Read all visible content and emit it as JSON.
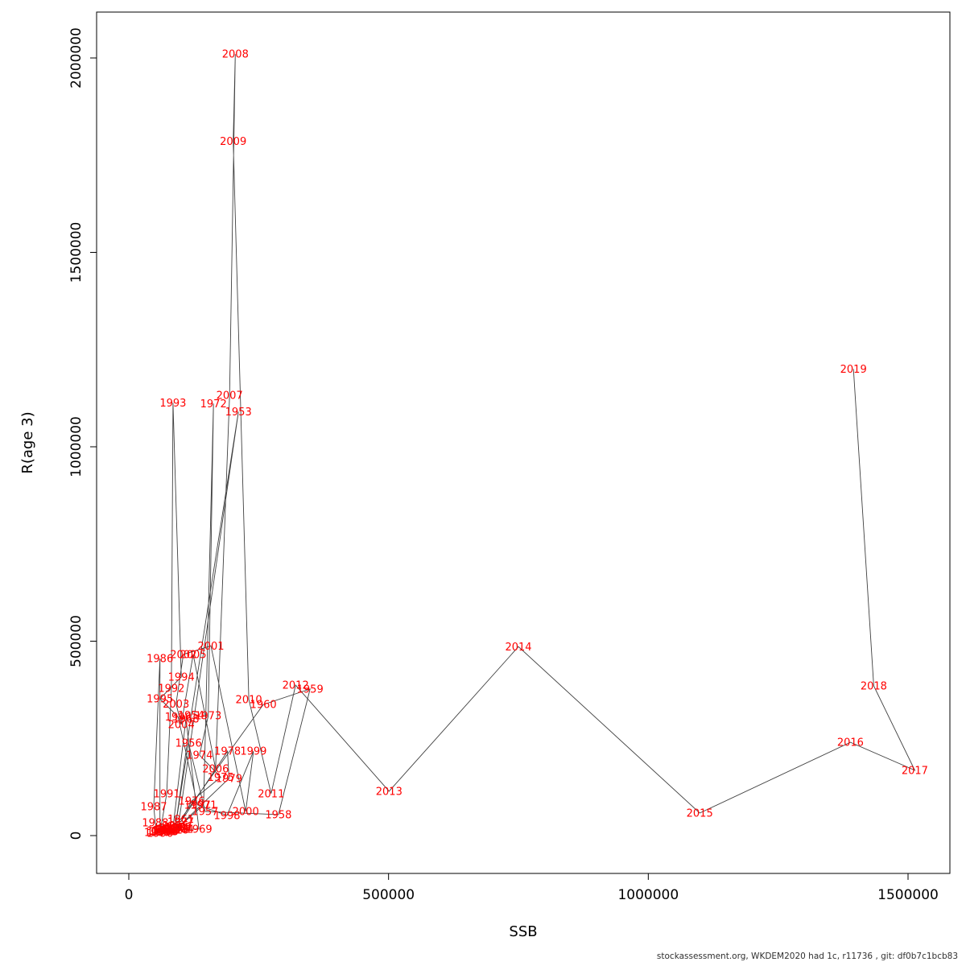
{
  "chart_data": {
    "type": "scatter",
    "title": "",
    "xlabel": "SSB",
    "ylabel": "R(age 3)",
    "xlim": [
      0,
      1581000
    ],
    "ylim": [
      0,
      2070000
    ],
    "x_ticks": [
      0,
      500000,
      1000000,
      1500000
    ],
    "y_ticks": [
      0,
      500000,
      1000000,
      1500000,
      2000000
    ],
    "grid": false,
    "legend": "none",
    "point_label_color": "#ff0000",
    "line_color": "#404040",
    "frame_color": "#000000",
    "points": [
      {
        "year": "1952",
        "ssb": 95000,
        "r": 22000
      },
      {
        "year": "1953",
        "ssb": 211000,
        "r": 1090000
      },
      {
        "year": "1954",
        "ssb": 120000,
        "r": 310000
      },
      {
        "year": "1955",
        "ssb": 90000,
        "r": 26000
      },
      {
        "year": "1956",
        "ssb": 115000,
        "r": 238000
      },
      {
        "year": "1957",
        "ssb": 147000,
        "r": 62000
      },
      {
        "year": "1958",
        "ssb": 288000,
        "r": 54000
      },
      {
        "year": "1959",
        "ssb": 349000,
        "r": 377000
      },
      {
        "year": "1960",
        "ssb": 259000,
        "r": 337000
      },
      {
        "year": "1961",
        "ssb": 100000,
        "r": 42000
      },
      {
        "year": "1962",
        "ssb": 75000,
        "r": 16000
      },
      {
        "year": "1963",
        "ssb": 70000,
        "r": 12000
      },
      {
        "year": "1964",
        "ssb": 80000,
        "r": 18000
      },
      {
        "year": "1965",
        "ssb": 65000,
        "r": 10000
      },
      {
        "year": "1966",
        "ssb": 72000,
        "r": 14000
      },
      {
        "year": "1967",
        "ssb": 85000,
        "r": 20000
      },
      {
        "year": "1968",
        "ssb": 110000,
        "r": 300000
      },
      {
        "year": "1969",
        "ssb": 135000,
        "r": 17000
      },
      {
        "year": "1970",
        "ssb": 90000,
        "r": 15000
      },
      {
        "year": "1971",
        "ssb": 144000,
        "r": 79000
      },
      {
        "year": "1972",
        "ssb": 163000,
        "r": 1111000
      },
      {
        "year": "1973",
        "ssb": 153000,
        "r": 308000
      },
      {
        "year": "1974",
        "ssb": 136000,
        "r": 207000
      },
      {
        "year": "1975",
        "ssb": 177000,
        "r": 150000
      },
      {
        "year": "1976",
        "ssb": 121000,
        "r": 89000
      },
      {
        "year": "1977",
        "ssb": 100000,
        "r": 35000
      },
      {
        "year": "1978",
        "ssb": 190000,
        "r": 217000
      },
      {
        "year": "1979",
        "ssb": 193000,
        "r": 147000
      },
      {
        "year": "1980",
        "ssb": 95000,
        "r": 22000
      },
      {
        "year": "1981",
        "ssb": 88000,
        "r": 18000
      },
      {
        "year": "1982",
        "ssb": 78000,
        "r": 14000
      },
      {
        "year": "1983",
        "ssb": 70000,
        "r": 10000
      },
      {
        "year": "1984",
        "ssb": 100000,
        "r": 17000
      },
      {
        "year": "1985",
        "ssb": 60000,
        "r": 12000
      },
      {
        "year": "1986",
        "ssb": 60000,
        "r": 455000
      },
      {
        "year": "1987",
        "ssb": 48000,
        "r": 75000
      },
      {
        "year": "1988",
        "ssb": 51000,
        "r": 33000
      },
      {
        "year": "1989",
        "ssb": 55000,
        "r": 8000
      },
      {
        "year": "1990",
        "ssb": 60000,
        "r": 6000
      },
      {
        "year": "1991",
        "ssb": 73000,
        "r": 108000
      },
      {
        "year": "1992",
        "ssb": 82000,
        "r": 379000
      },
      {
        "year": "1993",
        "ssb": 85000,
        "r": 1113000
      },
      {
        "year": "1994",
        "ssb": 101000,
        "r": 408000
      },
      {
        "year": "1995",
        "ssb": 60000,
        "r": 352000
      },
      {
        "year": "1996",
        "ssb": 95000,
        "r": 305000
      },
      {
        "year": "1997",
        "ssb": 132000,
        "r": 79000
      },
      {
        "year": "1998",
        "ssb": 189000,
        "r": 52000
      },
      {
        "year": "1999",
        "ssb": 240000,
        "r": 217000
      },
      {
        "year": "2000",
        "ssb": 225000,
        "r": 62000
      },
      {
        "year": "2001",
        "ssb": 158000,
        "r": 488000
      },
      {
        "year": "2002",
        "ssb": 105000,
        "r": 466000
      },
      {
        "year": "2003",
        "ssb": 91000,
        "r": 339000
      },
      {
        "year": "2004",
        "ssb": 101000,
        "r": 286000
      },
      {
        "year": "2005",
        "ssb": 124000,
        "r": 466000
      },
      {
        "year": "2006",
        "ssb": 167000,
        "r": 172000
      },
      {
        "year": "2007",
        "ssb": 194000,
        "r": 1132000
      },
      {
        "year": "2008",
        "ssb": 205000,
        "r": 2010000
      },
      {
        "year": "2009",
        "ssb": 201000,
        "r": 1786000
      },
      {
        "year": "2010",
        "ssb": 231000,
        "r": 350000
      },
      {
        "year": "2011",
        "ssb": 274000,
        "r": 108000
      },
      {
        "year": "2012",
        "ssb": 321000,
        "r": 387000
      },
      {
        "year": "2013",
        "ssb": 501000,
        "r": 114000
      },
      {
        "year": "2014",
        "ssb": 750000,
        "r": 486000
      },
      {
        "year": "2015",
        "ssb": 1099000,
        "r": 58000
      },
      {
        "year": "2016",
        "ssb": 1389000,
        "r": 240000
      },
      {
        "year": "2017",
        "ssb": 1513000,
        "r": 168000
      },
      {
        "year": "2018",
        "ssb": 1434000,
        "r": 385000
      },
      {
        "year": "2019",
        "ssb": 1395000,
        "r": 1200000
      }
    ]
  },
  "footer": {
    "text": "stockassessment.org, WKDEM2020  had  1c, r11736 , git: df0b7c1bcb83"
  }
}
